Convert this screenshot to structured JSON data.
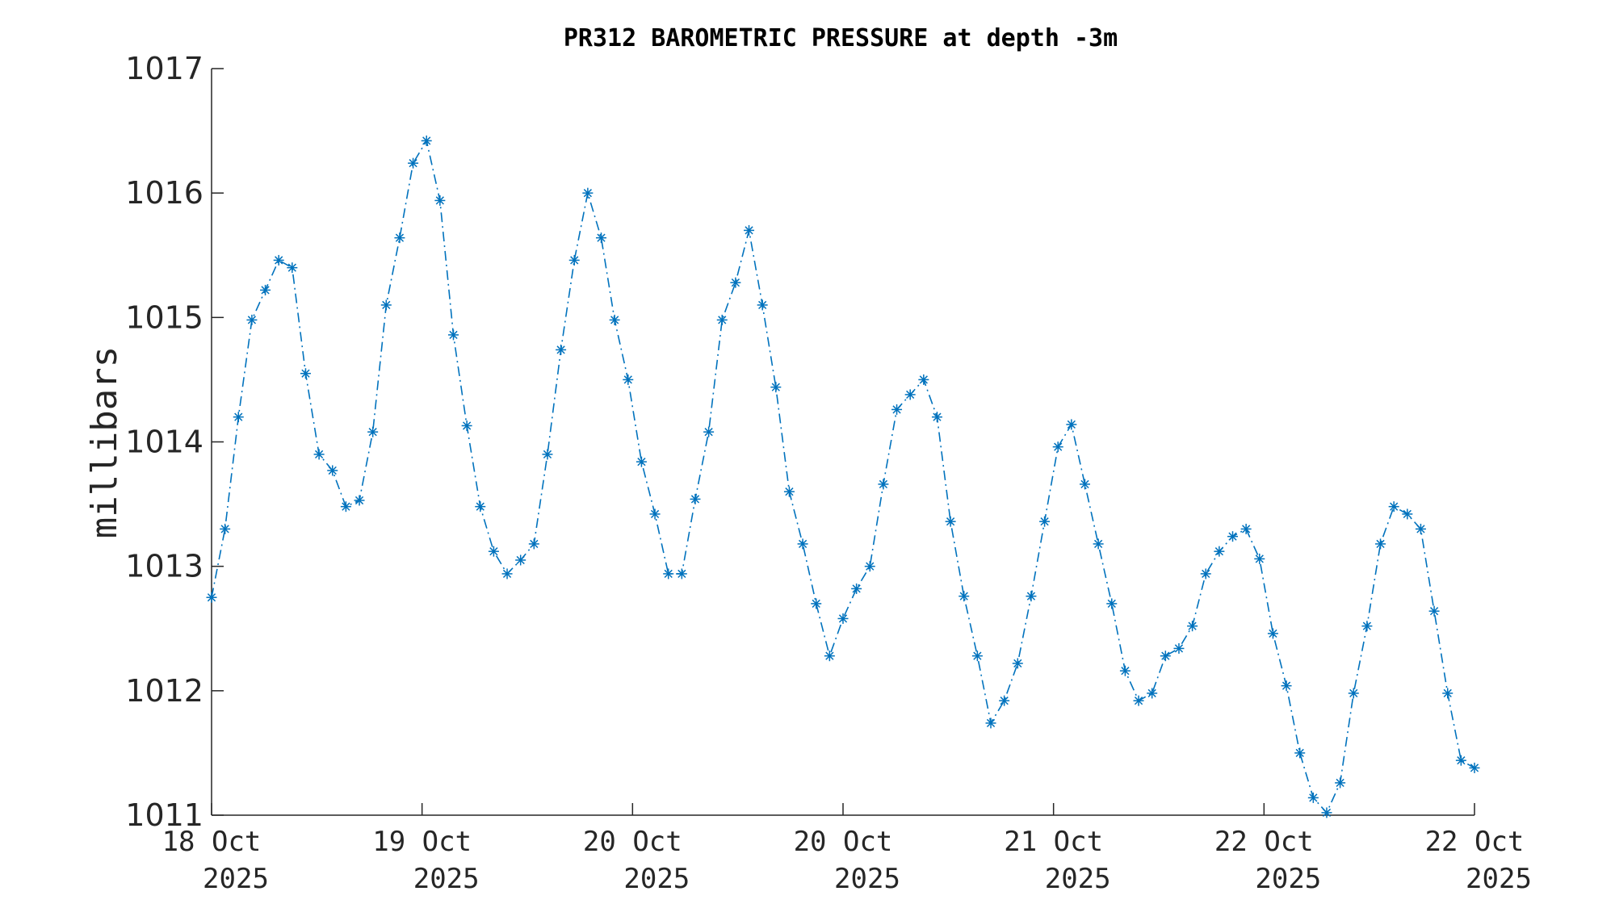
{
  "chart_data": {
    "type": "line",
    "title": "PR312 BAROMETRIC PRESSURE at depth -3m",
    "xlabel": "",
    "ylabel": "millibars",
    "ylim": [
      1011,
      1017
    ],
    "y_ticks": [
      "1011",
      "1012",
      "1013",
      "1014",
      "1015",
      "1016",
      "1017"
    ],
    "x_ticks": [
      {
        "line1": "18 Oct",
        "line2": "2025"
      },
      {
        "line1": "19 Oct",
        "line2": "2025"
      },
      {
        "line1": "20 Oct",
        "line2": "2025"
      },
      {
        "line1": "20 Oct",
        "line2": "2025"
      },
      {
        "line1": "21 Oct",
        "line2": "2025"
      },
      {
        "line1": "22 Oct",
        "line2": "2025"
      },
      {
        "line1": "22 Oct",
        "line2": "2025"
      }
    ],
    "grid": false,
    "line_style": "dash-dot",
    "marker": "asterisk",
    "color": "#0072BD",
    "series": [
      {
        "values": [
          1012.75,
          1013.3,
          1014.2,
          1014.98,
          1015.22,
          1015.46,
          1015.4,
          1014.55,
          1013.9,
          1013.77,
          1013.48,
          1013.53,
          1014.08,
          1015.1,
          1015.64,
          1016.24,
          1016.42,
          1015.94,
          1014.86,
          1014.13,
          1013.48,
          1013.12,
          1012.94,
          1013.05,
          1013.18,
          1013.9,
          1014.74,
          1015.46,
          1016.0,
          1015.64,
          1014.98,
          1014.5,
          1013.84,
          1013.42,
          1012.94,
          1012.94,
          1013.54,
          1014.08,
          1014.98,
          1015.28,
          1015.7,
          1015.1,
          1014.44,
          1013.6,
          1013.18,
          1012.7,
          1012.28,
          1012.58,
          1012.82,
          1013.0,
          1013.66,
          1014.26,
          1014.38,
          1014.5,
          1014.2,
          1013.36,
          1012.76,
          1012.28,
          1011.74,
          1011.92,
          1012.22,
          1012.76,
          1013.36,
          1013.96,
          1014.14,
          1013.66,
          1013.18,
          1012.7,
          1012.16,
          1011.92,
          1011.98,
          1012.28,
          1012.34,
          1012.52,
          1012.94,
          1013.12,
          1013.24,
          1013.3,
          1013.06,
          1012.46,
          1012.04,
          1011.5,
          1011.14,
          1011.02,
          1011.26,
          1011.98,
          1012.52,
          1013.18,
          1013.48,
          1013.42,
          1013.3,
          1012.64,
          1011.98,
          1011.44,
          1011.38
        ]
      }
    ]
  }
}
